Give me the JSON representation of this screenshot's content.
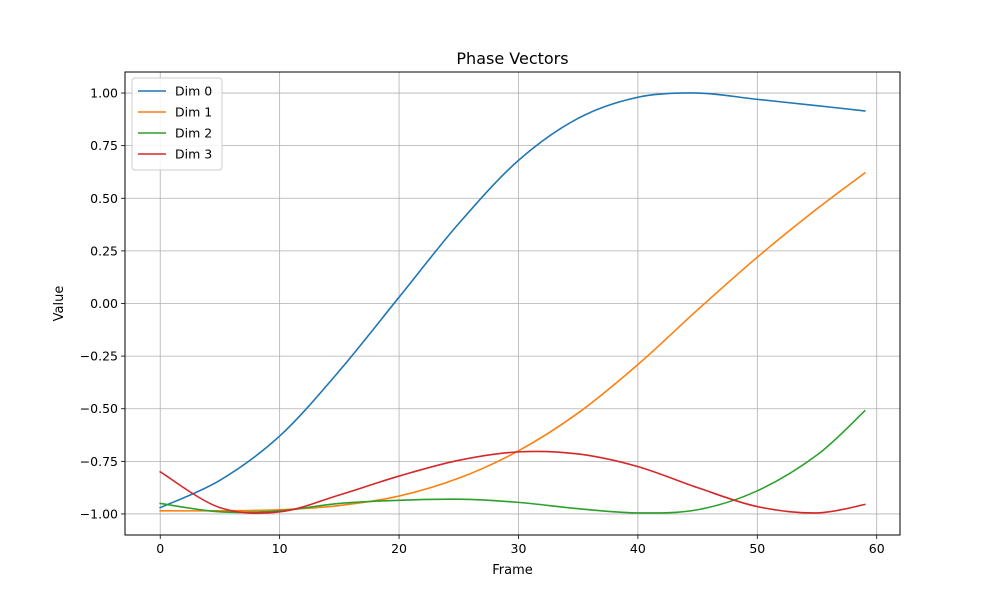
{
  "chart_data": {
    "type": "line",
    "title": "Phase Vectors",
    "xlabel": "Frame",
    "ylabel": "Value",
    "xlim": [
      -2.95,
      61.95
    ],
    "ylim": [
      -1.1,
      1.1
    ],
    "xticks": [
      0,
      10,
      20,
      30,
      40,
      50,
      60
    ],
    "yticks": [
      -1.0,
      -0.75,
      -0.5,
      -0.25,
      0.0,
      0.25,
      0.5,
      0.75,
      1.0
    ],
    "ytick_labels": [
      "−1.00",
      "−0.75",
      "−0.50",
      "−0.25",
      "0.00",
      "0.25",
      "0.50",
      "0.75",
      "1.00"
    ],
    "xtick_labels": [
      "0",
      "10",
      "20",
      "30",
      "40",
      "50",
      "60"
    ],
    "grid": true,
    "legend_position": "top-left",
    "x": [
      0,
      5,
      10,
      15,
      20,
      25,
      30,
      35,
      40,
      45,
      50,
      55,
      59
    ],
    "series": [
      {
        "name": "Dim 0",
        "color": "#1f77b4",
        "values": [
          -0.97,
          -0.84,
          -0.63,
          -0.32,
          0.03,
          0.38,
          0.68,
          0.88,
          0.98,
          1.0,
          0.97,
          0.94,
          0.915
        ]
      },
      {
        "name": "Dim 1",
        "color": "#ff7f0e",
        "values": [
          -0.985,
          -0.985,
          -0.98,
          -0.96,
          -0.915,
          -0.83,
          -0.7,
          -0.52,
          -0.29,
          -0.03,
          0.22,
          0.45,
          0.62
        ]
      },
      {
        "name": "Dim 2",
        "color": "#2ca02c",
        "values": [
          -0.95,
          -0.99,
          -0.985,
          -0.95,
          -0.935,
          -0.93,
          -0.945,
          -0.975,
          -0.995,
          -0.98,
          -0.89,
          -0.72,
          -0.51
        ]
      },
      {
        "name": "Dim 3",
        "color": "#d62728",
        "values": [
          -0.8,
          -0.97,
          -0.99,
          -0.91,
          -0.82,
          -0.745,
          -0.705,
          -0.715,
          -0.775,
          -0.875,
          -0.965,
          -0.995,
          -0.955
        ]
      }
    ]
  }
}
